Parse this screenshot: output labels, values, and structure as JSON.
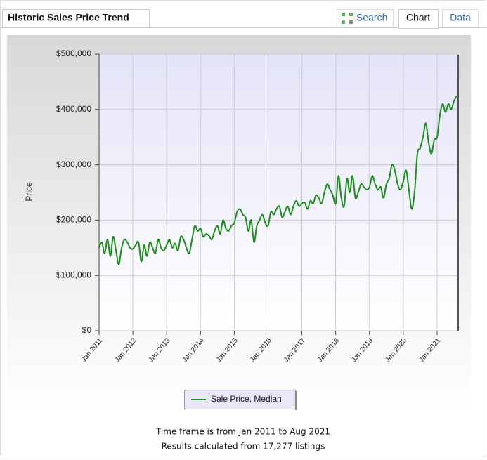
{
  "header": {
    "title": "Historic Sales Price Trend",
    "tabs": [
      "Search",
      "Chart",
      "Data"
    ]
  },
  "chart_data": {
    "type": "line",
    "y_label": "Price",
    "categories": [
      "Jan 2011",
      null,
      null,
      null,
      null,
      null,
      null,
      null,
      null,
      null,
      null,
      null,
      "Jan 2012",
      null,
      null,
      null,
      null,
      null,
      null,
      null,
      null,
      null,
      null,
      null,
      "Jan 2013",
      null,
      null,
      null,
      null,
      null,
      null,
      null,
      null,
      null,
      null,
      null,
      "Jan 2014",
      null,
      null,
      null,
      null,
      null,
      null,
      null,
      null,
      null,
      null,
      null,
      "Jan 2015",
      null,
      null,
      null,
      null,
      null,
      null,
      null,
      null,
      null,
      null,
      null,
      "Jan 2016",
      null,
      null,
      null,
      null,
      null,
      null,
      null,
      null,
      null,
      null,
      null,
      "Jan 2017",
      null,
      null,
      null,
      null,
      null,
      null,
      null,
      null,
      null,
      null,
      null,
      "Jan 2018",
      null,
      null,
      null,
      null,
      null,
      null,
      null,
      null,
      null,
      null,
      null,
      "Jan 2019",
      null,
      null,
      null,
      null,
      null,
      null,
      null,
      null,
      null,
      null,
      null,
      "Jan 2020",
      null,
      null,
      null,
      null,
      null,
      null,
      null,
      null,
      null,
      null,
      null,
      "Jan 2021",
      null,
      null,
      null,
      null,
      null,
      null,
      null
    ],
    "series": [
      {
        "name": "Sale Price, Median",
        "color": "#1e8c1e",
        "values": [
          150000,
          160000,
          140000,
          165000,
          135000,
          170000,
          145000,
          120000,
          150000,
          165000,
          160000,
          150000,
          148000,
          155000,
          160000,
          125000,
          155000,
          135000,
          160000,
          150000,
          140000,
          165000,
          150000,
          145000,
          155000,
          165000,
          150000,
          158000,
          145000,
          170000,
          165000,
          150000,
          140000,
          165000,
          190000,
          180000,
          185000,
          170000,
          175000,
          172000,
          165000,
          180000,
          190000,
          175000,
          200000,
          185000,
          180000,
          190000,
          195000,
          215000,
          220000,
          210000,
          205000,
          180000,
          200000,
          160000,
          190000,
          200000,
          210000,
          195000,
          190000,
          215000,
          210000,
          220000,
          225000,
          205000,
          215000,
          225000,
          210000,
          225000,
          235000,
          225000,
          230000,
          232000,
          220000,
          235000,
          230000,
          245000,
          240000,
          230000,
          250000,
          265000,
          255000,
          245000,
          230000,
          280000,
          240000,
          225000,
          275000,
          250000,
          280000,
          240000,
          250000,
          265000,
          260000,
          255000,
          260000,
          280000,
          265000,
          255000,
          260000,
          240000,
          265000,
          275000,
          300000,
          290000,
          265000,
          255000,
          270000,
          290000,
          255000,
          220000,
          250000,
          320000,
          330000,
          350000,
          375000,
          340000,
          320000,
          345000,
          350000,
          390000,
          410000,
          395000,
          410000,
          400000,
          415000,
          425000
        ]
      }
    ],
    "ylim": [
      0,
      500000
    ],
    "yticks": [
      {
        "value": 0,
        "label": "$0"
      },
      {
        "value": 100000,
        "label": "$100,000"
      },
      {
        "value": 200000,
        "label": "$200,000"
      },
      {
        "value": 300000,
        "label": "$300,000"
      },
      {
        "value": 400000,
        "label": "$400,000"
      },
      {
        "value": 500000,
        "label": "$500,000"
      }
    ],
    "grid": true
  },
  "footer": {
    "timeframe": "Time frame is from Jan 2011 to Aug 2021",
    "results": "Results calculated from 17,277 listings"
  }
}
